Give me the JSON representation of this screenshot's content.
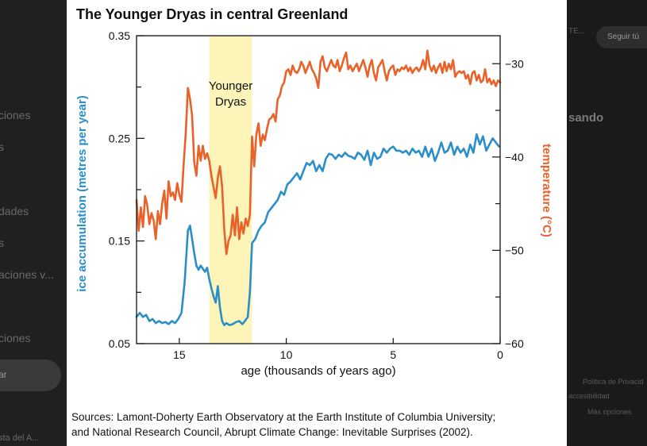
{
  "background": {
    "left_items": [
      "ciones",
      "s",
      "dades",
      "s",
      "aciones v...",
      "ciones",
      "ar",
      "sta del A..."
    ],
    "right_items": [
      "TE...",
      "Seguir tú",
      "sando",
      "Política de Privacid",
      "accesibilidad",
      "Más opciones"
    ],
    "left_button": "ar"
  },
  "chart_data": {
    "type": "line",
    "title": "The Younger Dryas in central Greenland",
    "xlabel": "age (thousands of years ago)",
    "ylabel_left": "ice accumulation (metres per year)",
    "ylabel_right": "temperature (°C)",
    "xlim": [
      17,
      0
    ],
    "ylim_left": [
      0.05,
      0.35
    ],
    "ylim_right": [
      -60,
      -27
    ],
    "x_ticks": [
      "15",
      "10",
      "5",
      "0"
    ],
    "y_ticks_left": [
      "0.05",
      "0.15",
      "0.25",
      "0.35"
    ],
    "y_ticks_right": [
      "−60",
      "−50",
      "−40",
      "−30"
    ],
    "annotation": {
      "label_lines": [
        "Younger",
        "Dryas"
      ],
      "x_range": [
        13.6,
        11.6
      ],
      "color": "#fcf4b8"
    },
    "series": [
      {
        "name": "ice accumulation",
        "axis": "left",
        "color": "#2a8fc9",
        "points": [
          [
            17.0,
            0.076
          ],
          [
            16.85,
            0.08
          ],
          [
            16.7,
            0.076
          ],
          [
            16.55,
            0.078
          ],
          [
            16.4,
            0.072
          ],
          [
            16.25,
            0.074
          ],
          [
            16.1,
            0.07
          ],
          [
            15.95,
            0.072
          ],
          [
            15.8,
            0.07
          ],
          [
            15.65,
            0.071
          ],
          [
            15.5,
            0.069
          ],
          [
            15.35,
            0.072
          ],
          [
            15.2,
            0.07
          ],
          [
            15.05,
            0.074
          ],
          [
            14.9,
            0.08
          ],
          [
            14.75,
            0.11
          ],
          [
            14.6,
            0.16
          ],
          [
            14.5,
            0.165
          ],
          [
            14.4,
            0.152
          ],
          [
            14.3,
            0.138
          ],
          [
            14.2,
            0.126
          ],
          [
            14.1,
            0.122
          ],
          [
            14.0,
            0.126
          ],
          [
            13.9,
            0.123
          ],
          [
            13.8,
            0.12
          ],
          [
            13.7,
            0.124
          ],
          [
            13.6,
            0.113
          ],
          [
            13.5,
            0.104
          ],
          [
            13.4,
            0.096
          ],
          [
            13.3,
            0.09
          ],
          [
            13.2,
            0.106
          ],
          [
            13.1,
            0.085
          ],
          [
            13.0,
            0.072
          ],
          [
            12.9,
            0.068
          ],
          [
            12.8,
            0.07
          ],
          [
            12.65,
            0.068
          ],
          [
            12.5,
            0.069
          ],
          [
            12.35,
            0.071
          ],
          [
            12.2,
            0.072
          ],
          [
            12.05,
            0.069
          ],
          [
            11.9,
            0.073
          ],
          [
            11.8,
            0.076
          ],
          [
            11.7,
            0.1
          ],
          [
            11.6,
            0.148
          ],
          [
            11.45,
            0.152
          ],
          [
            11.3,
            0.16
          ],
          [
            11.15,
            0.165
          ],
          [
            11.0,
            0.168
          ],
          [
            10.85,
            0.178
          ],
          [
            10.7,
            0.182
          ],
          [
            10.55,
            0.186
          ],
          [
            10.4,
            0.19
          ],
          [
            10.25,
            0.198
          ],
          [
            10.1,
            0.195
          ],
          [
            9.95,
            0.205
          ],
          [
            9.8,
            0.208
          ],
          [
            9.65,
            0.212
          ],
          [
            9.5,
            0.216
          ],
          [
            9.35,
            0.21
          ],
          [
            9.2,
            0.218
          ],
          [
            9.05,
            0.226
          ],
          [
            8.9,
            0.224
          ],
          [
            8.75,
            0.228
          ],
          [
            8.6,
            0.218
          ],
          [
            8.45,
            0.224
          ],
          [
            8.3,
            0.218
          ],
          [
            8.15,
            0.23
          ],
          [
            8.0,
            0.235
          ],
          [
            7.85,
            0.234
          ],
          [
            7.7,
            0.23
          ],
          [
            7.55,
            0.234
          ],
          [
            7.4,
            0.232
          ],
          [
            7.25,
            0.236
          ],
          [
            7.1,
            0.233
          ],
          [
            6.95,
            0.232
          ],
          [
            6.8,
            0.23
          ],
          [
            6.65,
            0.236
          ],
          [
            6.5,
            0.234
          ],
          [
            6.35,
            0.229
          ],
          [
            6.2,
            0.238
          ],
          [
            6.05,
            0.224
          ],
          [
            5.9,
            0.236
          ],
          [
            5.75,
            0.23
          ],
          [
            5.6,
            0.232
          ],
          [
            5.45,
            0.24
          ],
          [
            5.3,
            0.236
          ],
          [
            5.15,
            0.24
          ],
          [
            5.0,
            0.242
          ],
          [
            4.85,
            0.238
          ],
          [
            4.7,
            0.238
          ],
          [
            4.55,
            0.236
          ],
          [
            4.4,
            0.238
          ],
          [
            4.25,
            0.234
          ],
          [
            4.1,
            0.24
          ],
          [
            3.95,
            0.236
          ],
          [
            3.8,
            0.238
          ],
          [
            3.65,
            0.232
          ],
          [
            3.5,
            0.242
          ],
          [
            3.35,
            0.232
          ],
          [
            3.2,
            0.24
          ],
          [
            3.05,
            0.228
          ],
          [
            2.9,
            0.236
          ],
          [
            2.75,
            0.246
          ],
          [
            2.6,
            0.236
          ],
          [
            2.45,
            0.238
          ],
          [
            2.3,
            0.246
          ],
          [
            2.15,
            0.234
          ],
          [
            2.0,
            0.242
          ],
          [
            1.85,
            0.236
          ],
          [
            1.7,
            0.24
          ],
          [
            1.55,
            0.232
          ],
          [
            1.4,
            0.244
          ],
          [
            1.25,
            0.236
          ],
          [
            1.1,
            0.254
          ],
          [
            0.95,
            0.244
          ],
          [
            0.8,
            0.252
          ],
          [
            0.65,
            0.238
          ],
          [
            0.5,
            0.244
          ],
          [
            0.35,
            0.25
          ],
          [
            0.2,
            0.246
          ],
          [
            0.05,
            0.242
          ]
        ]
      },
      {
        "name": "temperature",
        "axis": "right",
        "color": "#e8622a",
        "points": [
          [
            17.0,
            -44.6
          ],
          [
            16.9,
            -47.9
          ],
          [
            16.8,
            -45.4
          ],
          [
            16.7,
            -47.5
          ],
          [
            16.6,
            -44.2
          ],
          [
            16.5,
            -45.2
          ],
          [
            16.4,
            -47.2
          ],
          [
            16.3,
            -46.0
          ],
          [
            16.2,
            -46.8
          ],
          [
            16.1,
            -48.8
          ],
          [
            16.0,
            -45.8
          ],
          [
            15.9,
            -47.2
          ],
          [
            15.8,
            -45.0
          ],
          [
            15.7,
            -43.6
          ],
          [
            15.6,
            -46.6
          ],
          [
            15.5,
            -42.6
          ],
          [
            15.4,
            -44.2
          ],
          [
            15.3,
            -43.8
          ],
          [
            15.2,
            -44.6
          ],
          [
            15.1,
            -42.8
          ],
          [
            15.0,
            -44.0
          ],
          [
            14.9,
            -44.8
          ],
          [
            14.8,
            -40.8
          ],
          [
            14.7,
            -37.4
          ],
          [
            14.6,
            -32.6
          ],
          [
            14.5,
            -33.8
          ],
          [
            14.4,
            -35.6
          ],
          [
            14.3,
            -40.6
          ],
          [
            14.2,
            -42.0
          ],
          [
            14.1,
            -38.8
          ],
          [
            14.0,
            -40.4
          ],
          [
            13.9,
            -38.8
          ],
          [
            13.8,
            -40.2
          ],
          [
            13.7,
            -39.6
          ],
          [
            13.6,
            -40.4
          ],
          [
            13.5,
            -42.0
          ],
          [
            13.4,
            -43.2
          ],
          [
            13.3,
            -44.4
          ],
          [
            13.2,
            -42.2
          ],
          [
            13.1,
            -41.0
          ],
          [
            13.0,
            -43.2
          ],
          [
            12.9,
            -47.8
          ],
          [
            12.8,
            -50.4
          ],
          [
            12.7,
            -49.0
          ],
          [
            12.6,
            -48.4
          ],
          [
            12.5,
            -46.2
          ],
          [
            12.4,
            -48.4
          ],
          [
            12.3,
            -45.4
          ],
          [
            12.2,
            -48.8
          ],
          [
            12.1,
            -47.0
          ],
          [
            12.0,
            -48.2
          ],
          [
            11.9,
            -46.6
          ],
          [
            11.8,
            -47.4
          ],
          [
            11.7,
            -46.2
          ],
          [
            11.6,
            -37.8
          ],
          [
            11.5,
            -41.0
          ],
          [
            11.4,
            -37.6
          ],
          [
            11.3,
            -36.4
          ],
          [
            11.2,
            -38.8
          ],
          [
            11.1,
            -37.6
          ],
          [
            11.0,
            -38.2
          ],
          [
            10.9,
            -37.0
          ],
          [
            10.8,
            -36.0
          ],
          [
            10.7,
            -35.8
          ],
          [
            10.6,
            -35.4
          ],
          [
            10.5,
            -36.2
          ],
          [
            10.4,
            -33.8
          ],
          [
            10.3,
            -33.4
          ],
          [
            10.2,
            -32.4
          ],
          [
            10.1,
            -32.0
          ],
          [
            10.0,
            -30.8
          ],
          [
            9.9,
            -30.6
          ],
          [
            9.8,
            -31.2
          ],
          [
            9.7,
            -30.2
          ],
          [
            9.6,
            -30.8
          ],
          [
            9.5,
            -31.0
          ],
          [
            9.4,
            -30.6
          ],
          [
            9.3,
            -29.8
          ],
          [
            9.2,
            -30.2
          ],
          [
            9.1,
            -31.0
          ],
          [
            9.0,
            -30.4
          ],
          [
            8.9,
            -29.8
          ],
          [
            8.8,
            -30.6
          ],
          [
            8.7,
            -31.0
          ],
          [
            8.6,
            -31.6
          ],
          [
            8.5,
            -32.6
          ],
          [
            8.4,
            -29.8
          ],
          [
            8.3,
            -29.2
          ],
          [
            8.2,
            -30.4
          ],
          [
            8.1,
            -30.8
          ],
          [
            8.0,
            -30.2
          ],
          [
            7.9,
            -29.6
          ],
          [
            7.8,
            -30.2
          ],
          [
            7.7,
            -30.4
          ],
          [
            7.6,
            -29.6
          ],
          [
            7.5,
            -30.8
          ],
          [
            7.4,
            -30.2
          ],
          [
            7.3,
            -29.4
          ],
          [
            7.2,
            -28.8
          ],
          [
            7.1,
            -30.6
          ],
          [
            7.0,
            -30.2
          ],
          [
            6.9,
            -30.8
          ],
          [
            6.8,
            -30.4
          ],
          [
            6.7,
            -30.0
          ],
          [
            6.6,
            -30.8
          ],
          [
            6.5,
            -30.2
          ],
          [
            6.4,
            -29.6
          ],
          [
            6.3,
            -30.4
          ],
          [
            6.2,
            -31.4
          ],
          [
            6.1,
            -30.2
          ],
          [
            6.0,
            -29.6
          ],
          [
            5.9,
            -31.0
          ],
          [
            5.8,
            -31.8
          ],
          [
            5.7,
            -30.4
          ],
          [
            5.6,
            -30.0
          ],
          [
            5.5,
            -29.6
          ],
          [
            5.4,
            -30.8
          ],
          [
            5.3,
            -31.8
          ],
          [
            5.2,
            -30.8
          ],
          [
            5.1,
            -30.4
          ],
          [
            5.0,
            -30.2
          ],
          [
            4.9,
            -31.2
          ],
          [
            4.8,
            -30.6
          ],
          [
            4.7,
            -30.8
          ],
          [
            4.6,
            -30.4
          ],
          [
            4.5,
            -30.6
          ],
          [
            4.4,
            -30.2
          ],
          [
            4.3,
            -30.8
          ],
          [
            4.2,
            -30.4
          ],
          [
            4.1,
            -31.0
          ],
          [
            4.0,
            -30.6
          ],
          [
            3.9,
            -30.4
          ],
          [
            3.8,
            -30.8
          ],
          [
            3.7,
            -30.4
          ],
          [
            3.6,
            -29.6
          ],
          [
            3.5,
            -30.6
          ],
          [
            3.4,
            -28.6
          ],
          [
            3.3,
            -30.2
          ],
          [
            3.2,
            -30.8
          ],
          [
            3.1,
            -30.2
          ],
          [
            3.0,
            -31.0
          ],
          [
            2.9,
            -30.4
          ],
          [
            2.8,
            -30.0
          ],
          [
            2.7,
            -31.0
          ],
          [
            2.6,
            -29.8
          ],
          [
            2.5,
            -30.8
          ],
          [
            2.4,
            -30.0
          ],
          [
            2.3,
            -30.6
          ],
          [
            2.2,
            -29.6
          ],
          [
            2.1,
            -31.4
          ],
          [
            2.0,
            -31.0
          ],
          [
            1.9,
            -30.8
          ],
          [
            1.8,
            -31.0
          ],
          [
            1.7,
            -30.8
          ],
          [
            1.6,
            -31.6
          ],
          [
            1.5,
            -31.2
          ],
          [
            1.4,
            -32.2
          ],
          [
            1.3,
            -31.0
          ],
          [
            1.2,
            -30.8
          ],
          [
            1.1,
            -31.8
          ],
          [
            1.0,
            -31.2
          ],
          [
            0.9,
            -32.0
          ],
          [
            0.8,
            -31.8
          ],
          [
            0.7,
            -30.6
          ],
          [
            0.6,
            -32.0
          ],
          [
            0.5,
            -31.6
          ],
          [
            0.4,
            -32.2
          ],
          [
            0.3,
            -31.8
          ],
          [
            0.2,
            -32.4
          ],
          [
            0.1,
            -31.8
          ],
          [
            0.0,
            -32.0
          ]
        ]
      }
    ],
    "grid": false,
    "legend": "none"
  },
  "source_text": {
    "line1": "Sources: Lamont-Doherty Earth Observatory at the Earth Institute of Columbia University;",
    "line2": "and National Research Council, Abrupt Climate Change: Inevitable Surprises (2002)."
  }
}
